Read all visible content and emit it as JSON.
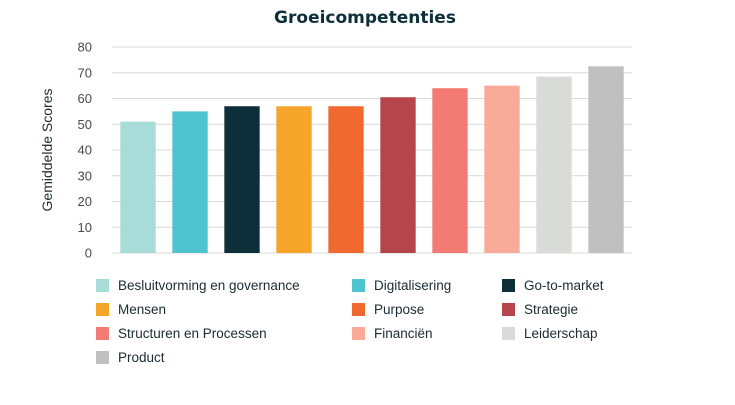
{
  "chart_data": {
    "type": "bar",
    "title": "Groeicompetenties",
    "xlabel": "",
    "ylabel": "Gemiddelde Scores",
    "ylim": [
      0,
      80
    ],
    "yticks": [
      0,
      10,
      20,
      30,
      40,
      50,
      60,
      70,
      80
    ],
    "grid": true,
    "legend_position": "bottom",
    "categories": [
      "Besluitvorming en governance",
      "Digitalisering",
      "Go-to-market",
      "Mensen",
      "Purpose",
      "Strategie",
      "Structuren en Processen",
      "Financiën",
      "Leiderschap",
      "Product"
    ],
    "values": [
      51,
      55,
      57,
      57,
      57,
      60.5,
      64,
      65,
      68.5,
      72.5
    ],
    "colors": [
      "#a8dcd9",
      "#4fc3cf",
      "#0d2f3a",
      "#f5a52a",
      "#f06a2f",
      "#b5454a",
      "#f47b73",
      "#f9aa98",
      "#d9dbd8",
      "#bfc0bf"
    ]
  }
}
